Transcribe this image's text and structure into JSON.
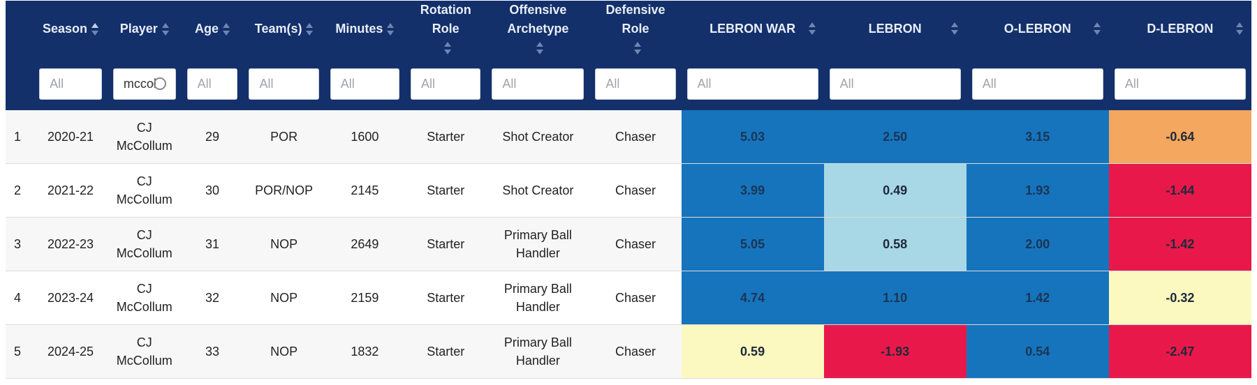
{
  "columns": [
    {
      "key": "idx",
      "label": ""
    },
    {
      "key": "season",
      "label": "Season"
    },
    {
      "key": "player",
      "label": "Player"
    },
    {
      "key": "age",
      "label": "Age"
    },
    {
      "key": "teams",
      "label": "Team(s)"
    },
    {
      "key": "minutes",
      "label": "Minutes"
    },
    {
      "key": "rotation_role",
      "label": "Rotation Role"
    },
    {
      "key": "offensive_archetype",
      "label": "Offensive Archetype"
    },
    {
      "key": "defensive_role",
      "label": "Defensive Role"
    },
    {
      "key": "lebron_war",
      "label": "LEBRON WAR"
    },
    {
      "key": "lebron",
      "label": "LEBRON"
    },
    {
      "key": "o_lebron",
      "label": "O-LEBRON"
    },
    {
      "key": "d_lebron",
      "label": "D-LEBRON"
    }
  ],
  "sorted_column": "season",
  "filters": {
    "placeholder": "All",
    "season": "",
    "player": "mccol",
    "age": "",
    "teams": "",
    "minutes": "",
    "rotation_role": "",
    "offensive_archetype": "",
    "defensive_role": "",
    "lebron_war": "",
    "lebron": "",
    "o_lebron": "",
    "d_lebron": ""
  },
  "colors": {
    "header_bg": "#13306b",
    "blue": "#1674bd",
    "light_blue": "#a8d7e6",
    "orange": "#f4a75e",
    "red": "#e8194a",
    "pale_yellow": "#fbf9c0"
  },
  "rows": [
    {
      "idx": "1",
      "season": "2020-21",
      "player": "CJ McCollum",
      "age": "29",
      "teams": "POR",
      "minutes": "1600",
      "rotation_role": "Starter",
      "offensive_archetype": "Shot Creator",
      "defensive_role": "Chaser",
      "lebron_war": "5.03",
      "lebron": "2.50",
      "o_lebron": "3.15",
      "d_lebron": "-0.64",
      "colors": {
        "lebron_war": "blue",
        "lebron": "blue",
        "o_lebron": "blue",
        "d_lebron": "orange"
      }
    },
    {
      "idx": "2",
      "season": "2021-22",
      "player": "CJ McCollum",
      "age": "30",
      "teams": "POR/NOP",
      "minutes": "2145",
      "rotation_role": "Starter",
      "offensive_archetype": "Shot Creator",
      "defensive_role": "Chaser",
      "lebron_war": "3.99",
      "lebron": "0.49",
      "o_lebron": "1.93",
      "d_lebron": "-1.44",
      "colors": {
        "lebron_war": "blue",
        "lebron": "light_blue",
        "o_lebron": "blue",
        "d_lebron": "red"
      }
    },
    {
      "idx": "3",
      "season": "2022-23",
      "player": "CJ McCollum",
      "age": "31",
      "teams": "NOP",
      "minutes": "2649",
      "rotation_role": "Starter",
      "offensive_archetype": "Primary Ball Handler",
      "defensive_role": "Chaser",
      "lebron_war": "5.05",
      "lebron": "0.58",
      "o_lebron": "2.00",
      "d_lebron": "-1.42",
      "colors": {
        "lebron_war": "blue",
        "lebron": "light_blue",
        "o_lebron": "blue",
        "d_lebron": "red"
      }
    },
    {
      "idx": "4",
      "season": "2023-24",
      "player": "CJ McCollum",
      "age": "32",
      "teams": "NOP",
      "minutes": "2159",
      "rotation_role": "Starter",
      "offensive_archetype": "Primary Ball Handler",
      "defensive_role": "Chaser",
      "lebron_war": "4.74",
      "lebron": "1.10",
      "o_lebron": "1.42",
      "d_lebron": "-0.32",
      "colors": {
        "lebron_war": "blue",
        "lebron": "blue",
        "o_lebron": "blue",
        "d_lebron": "pale_yellow"
      }
    },
    {
      "idx": "5",
      "season": "2024-25",
      "player": "CJ McCollum",
      "age": "33",
      "teams": "NOP",
      "minutes": "1832",
      "rotation_role": "Starter",
      "offensive_archetype": "Primary Ball Handler",
      "defensive_role": "Chaser",
      "lebron_war": "0.59",
      "lebron": "-1.93",
      "o_lebron": "0.54",
      "d_lebron": "-2.47",
      "colors": {
        "lebron_war": "pale_yellow",
        "lebron": "red",
        "o_lebron": "blue",
        "d_lebron": "red"
      }
    }
  ]
}
